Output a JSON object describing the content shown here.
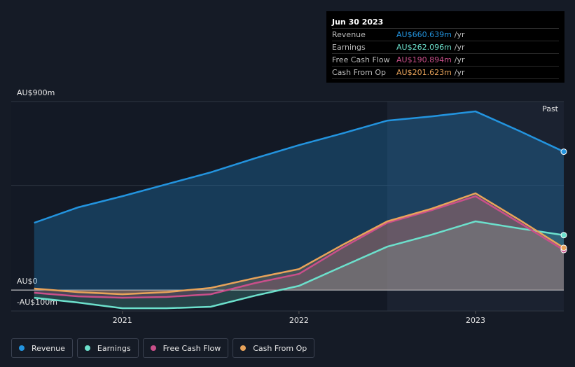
{
  "chart_data": {
    "type": "area",
    "x": [
      2020.5,
      2020.75,
      2021,
      2021.25,
      2021.5,
      2021.75,
      2022,
      2022.25,
      2022.5,
      2022.75,
      2023,
      2023.25,
      2023.5
    ],
    "xlim": [
      2020.37,
      2023.5
    ],
    "xticks": [
      2021,
      2022,
      2023
    ],
    "ylim": [
      -100,
      900
    ],
    "yticks": [
      {
        "value": -100,
        "label": "-AU$100m"
      },
      {
        "value": 0,
        "label": "AU$0"
      },
      {
        "value": 500,
        "label": null
      },
      {
        "value": 900,
        "label": "AU$900m"
      }
    ],
    "grid": true,
    "past_start": 2022.5,
    "past_label": "Past",
    "series": [
      {
        "name": "Revenue",
        "color": "#2394df",
        "values": [
          321,
          395,
          448,
          505,
          562,
          629,
          692,
          749,
          809,
          829,
          853,
          759,
          660.639
        ]
      },
      {
        "name": "Earnings",
        "color": "#6ce0cc",
        "values": [
          -37,
          -60,
          -87,
          -87,
          -80,
          -27,
          20,
          114,
          207,
          264,
          328,
          294,
          262.096
        ]
      },
      {
        "name": "Free Cash Flow",
        "color": "#c94f8a",
        "values": [
          -13,
          -30,
          -37,
          -33,
          -20,
          33,
          77,
          204,
          321,
          381,
          448,
          321,
          190.894
        ]
      },
      {
        "name": "Cash From Op",
        "color": "#e8a35a",
        "values": [
          7,
          -10,
          -20,
          -10,
          10,
          57,
          100,
          217,
          328,
          388,
          462,
          334,
          201.623
        ]
      }
    ],
    "tooltip": {
      "date": "Jun 30 2023",
      "unit": "/yr",
      "values": [
        660.639,
        262.096,
        190.894,
        201.623
      ],
      "value_labels": [
        "AU$660.639m",
        "AU$262.096m",
        "AU$190.894m",
        "AU$201.623m"
      ]
    }
  }
}
